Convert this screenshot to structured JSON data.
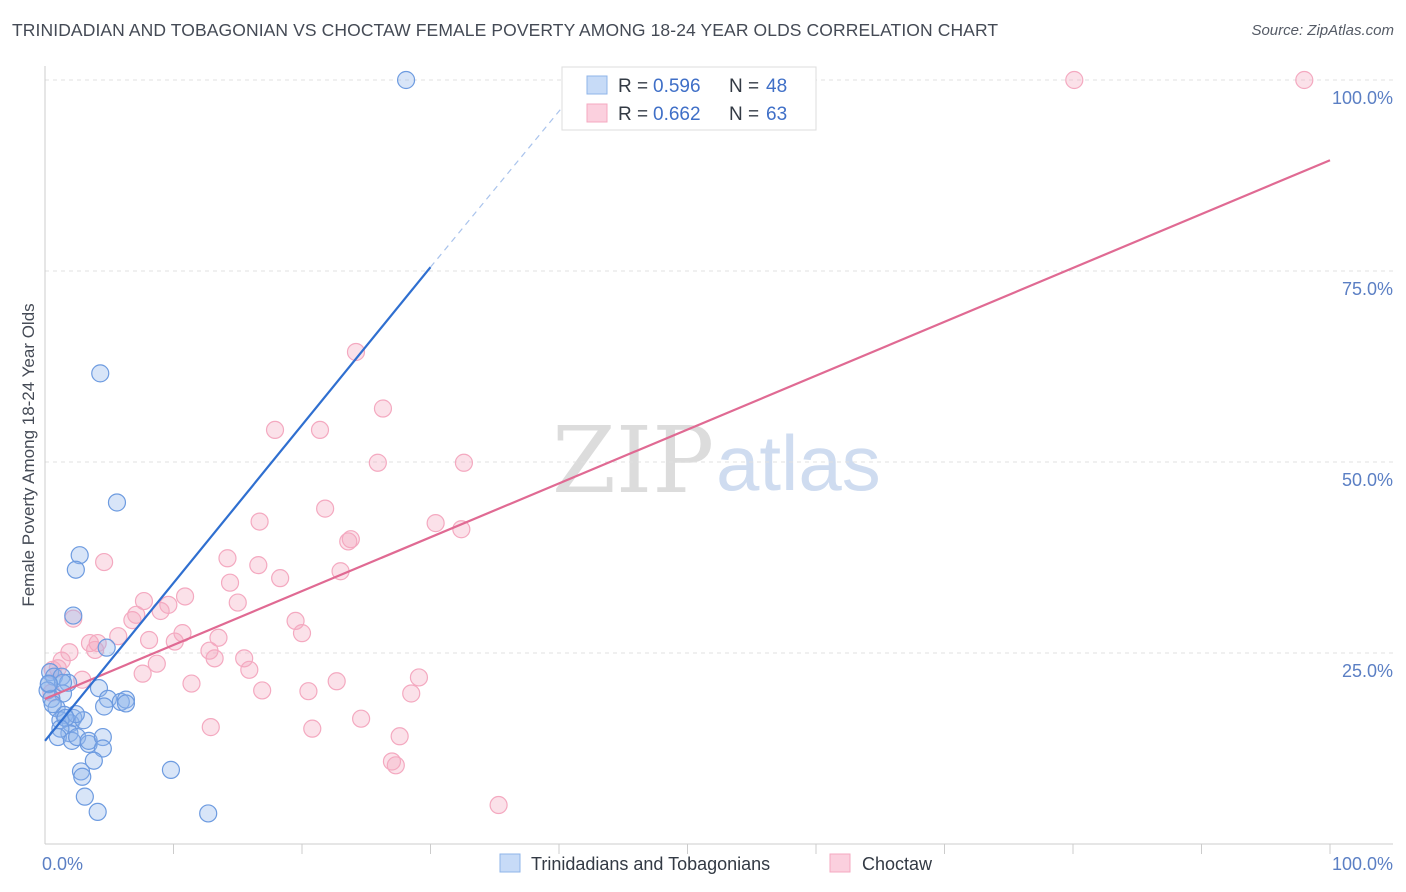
{
  "title": "TRINIDADIAN AND TOBAGONIAN VS CHOCTAW FEMALE POVERTY AMONG 18-24 YEAR OLDS CORRELATION CHART",
  "source": "Source: ZipAtlas.com",
  "watermark": {
    "zip": "ZIP",
    "atlas": "atlas"
  },
  "legend_top": {
    "rows": [
      {
        "r_label": "R =",
        "r_value": "0.596",
        "n_label": "N =",
        "n_value": "48"
      },
      {
        "r_label": "R =",
        "r_value": "0.662",
        "n_label": "N =",
        "n_value": "63"
      }
    ]
  },
  "chart_data": {
    "type": "scatter",
    "title": "TRINIDADIAN AND TOBAGONIAN VS CHOCTAW FEMALE POVERTY AMONG 18-24 YEAR OLDS CORRELATION CHART",
    "xlabel": "",
    "ylabel": "Female Poverty Among 18-24 Year Olds",
    "xlim": [
      0,
      100
    ],
    "ylim": [
      0,
      100
    ],
    "x_tick_labels": [
      "0.0%",
      "100.0%"
    ],
    "y_tick_labels": [
      "25.0%",
      "50.0%",
      "75.0%",
      "100.0%"
    ],
    "y_ticks": [
      25,
      50,
      75,
      100
    ],
    "grid": true,
    "colors": {
      "series1": "#8fb4ea",
      "series1_line": "#2f6fd0",
      "series2": "#f4a9c0",
      "series2_line": "#e06a93"
    },
    "series": [
      {
        "name": "Trinidadians and Tobagonians",
        "R": 0.596,
        "N": 48,
        "trend": {
          "x0": 0,
          "y0": 13.5,
          "x1": 30,
          "y1": 75.5,
          "dash_to_x": 42,
          "dash_to_y": 100
        },
        "points": [
          [
            28.1,
            100
          ],
          [
            4.3,
            61.6
          ],
          [
            5.6,
            44.7
          ],
          [
            2.7,
            37.8
          ],
          [
            2.4,
            35.9
          ],
          [
            2.2,
            29.9
          ],
          [
            4.8,
            25.7
          ],
          [
            0.4,
            22.5
          ],
          [
            0.7,
            21.9
          ],
          [
            1.3,
            21.9
          ],
          [
            1.8,
            21.1
          ],
          [
            0.3,
            20.9
          ],
          [
            0.2,
            20.1
          ],
          [
            1.4,
            19.7
          ],
          [
            0.5,
            19.0
          ],
          [
            4.2,
            20.4
          ],
          [
            4.9,
            19.0
          ],
          [
            5.9,
            18.6
          ],
          [
            6.3,
            18.9
          ],
          [
            6.3,
            18.4
          ],
          [
            4.6,
            18.0
          ],
          [
            0.9,
            17.8
          ],
          [
            1.5,
            16.9
          ],
          [
            2.2,
            16.5
          ],
          [
            2.0,
            15.8
          ],
          [
            1.2,
            16.2
          ],
          [
            3.0,
            16.2
          ],
          [
            2.4,
            17.0
          ],
          [
            1.9,
            14.5
          ],
          [
            1.6,
            16.5
          ],
          [
            1.2,
            15.1
          ],
          [
            1.0,
            14.0
          ],
          [
            2.1,
            13.5
          ],
          [
            2.5,
            14.0
          ],
          [
            3.4,
            13.1
          ],
          [
            3.4,
            13.5
          ],
          [
            4.5,
            14.0
          ],
          [
            4.5,
            12.5
          ],
          [
            3.8,
            10.9
          ],
          [
            2.8,
            9.5
          ],
          [
            2.9,
            8.8
          ],
          [
            3.1,
            6.2
          ],
          [
            4.1,
            4.2
          ],
          [
            9.8,
            9.7
          ],
          [
            12.7,
            4.0
          ],
          [
            1.4,
            21.1
          ],
          [
            0.3,
            21.0
          ],
          [
            0.6,
            18.3
          ]
        ]
      },
      {
        "name": "Choctaw",
        "R": 0.662,
        "N": 63,
        "trend": {
          "x0": 0,
          "y0": 19.0,
          "x1": 100,
          "y1": 89.5
        },
        "points": [
          [
            80.1,
            100
          ],
          [
            98.0,
            100
          ],
          [
            24.2,
            64.4
          ],
          [
            26.3,
            57.0
          ],
          [
            17.9,
            54.2
          ],
          [
            21.4,
            54.2
          ],
          [
            25.9,
            49.9
          ],
          [
            32.6,
            49.9
          ],
          [
            21.8,
            43.9
          ],
          [
            16.7,
            42.2
          ],
          [
            30.4,
            42.0
          ],
          [
            32.4,
            41.2
          ],
          [
            23.8,
            39.9
          ],
          [
            23.6,
            39.6
          ],
          [
            14.2,
            37.4
          ],
          [
            4.6,
            36.9
          ],
          [
            16.6,
            36.5
          ],
          [
            23.0,
            35.7
          ],
          [
            14.4,
            34.2
          ],
          [
            18.3,
            34.8
          ],
          [
            10.9,
            32.4
          ],
          [
            7.7,
            31.8
          ],
          [
            9.6,
            31.3
          ],
          [
            15.0,
            31.6
          ],
          [
            6.8,
            29.3
          ],
          [
            9.0,
            30.5
          ],
          [
            7.1,
            30.0
          ],
          [
            2.2,
            29.5
          ],
          [
            19.5,
            29.2
          ],
          [
            20.0,
            27.6
          ],
          [
            10.7,
            27.6
          ],
          [
            13.5,
            27.0
          ],
          [
            5.7,
            27.2
          ],
          [
            8.1,
            26.7
          ],
          [
            10.1,
            26.5
          ],
          [
            4.1,
            26.3
          ],
          [
            3.5,
            26.3
          ],
          [
            3.9,
            25.4
          ],
          [
            1.9,
            25.1
          ],
          [
            12.8,
            25.3
          ],
          [
            13.2,
            24.3
          ],
          [
            15.5,
            24.3
          ],
          [
            1.3,
            24.0
          ],
          [
            8.7,
            23.6
          ],
          [
            0.6,
            22.8
          ],
          [
            1.0,
            23.0
          ],
          [
            15.9,
            22.8
          ],
          [
            7.6,
            22.3
          ],
          [
            2.9,
            21.5
          ],
          [
            29.1,
            21.8
          ],
          [
            22.7,
            21.3
          ],
          [
            11.4,
            21.0
          ],
          [
            16.9,
            20.1
          ],
          [
            20.5,
            20.0
          ],
          [
            28.5,
            19.7
          ],
          [
            0.5,
            19.8
          ],
          [
            24.6,
            16.4
          ],
          [
            20.8,
            15.1
          ],
          [
            12.9,
            15.3
          ],
          [
            27.6,
            14.1
          ],
          [
            27.0,
            10.8
          ],
          [
            27.3,
            10.3
          ],
          [
            35.3,
            5.1
          ]
        ]
      }
    ]
  },
  "bottom_legend": {
    "items": [
      "Trinidadians and Tobagonians",
      "Choctaw"
    ]
  }
}
